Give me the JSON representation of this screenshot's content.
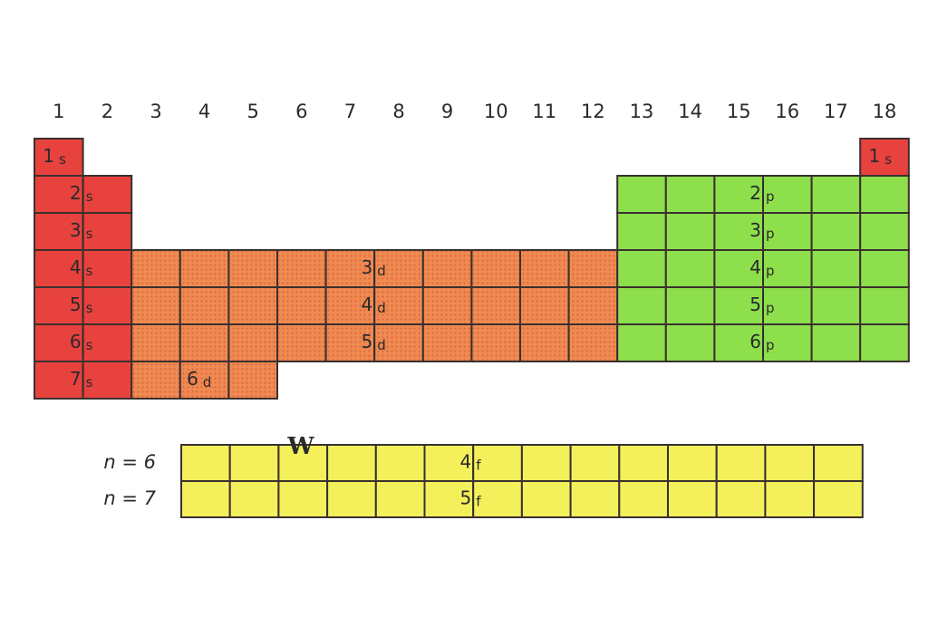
{
  "group_numbers": [
    "1",
    "2",
    "3",
    "4",
    "5",
    "6",
    "7",
    "8",
    "9",
    "10",
    "11",
    "12",
    "13",
    "14",
    "15",
    "16",
    "17",
    "18"
  ],
  "s_block": {
    "labels": [
      {
        "number": "1",
        "letter": "s"
      },
      {
        "number": "2",
        "letter": "s"
      },
      {
        "number": "3",
        "letter": "s"
      },
      {
        "number": "4",
        "letter": "s"
      },
      {
        "number": "5",
        "letter": "s"
      },
      {
        "number": "6",
        "letter": "s"
      },
      {
        "number": "7",
        "letter": "s"
      },
      {
        "number": "1",
        "letter": "s"
      }
    ]
  },
  "d_block": {
    "labels": [
      {
        "number": "3",
        "letter": "d"
      },
      {
        "number": "4",
        "letter": "d"
      },
      {
        "number": "5",
        "letter": "d"
      },
      {
        "number": "6",
        "letter": "d"
      }
    ]
  },
  "p_block": {
    "labels": [
      {
        "number": "2",
        "letter": "p"
      },
      {
        "number": "3",
        "letter": "p"
      },
      {
        "number": "4",
        "letter": "p"
      },
      {
        "number": "5",
        "letter": "p"
      },
      {
        "number": "6",
        "letter": "p"
      }
    ]
  },
  "f_block": {
    "row_labels": [
      "n = 6",
      "n = 7"
    ],
    "labels": [
      {
        "number": "4",
        "letter": "f"
      },
      {
        "number": "5",
        "letter": "f"
      }
    ]
  },
  "annotation": "W"
}
